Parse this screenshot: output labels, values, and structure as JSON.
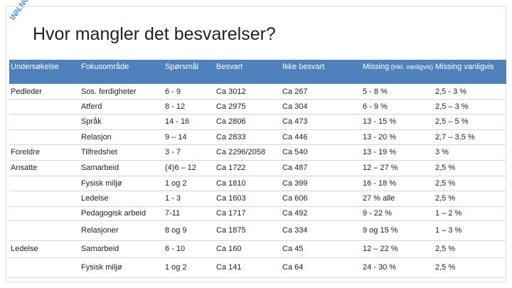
{
  "logo": "INN.NO",
  "header": {
    "title": "Hvor mangler det besvarelser?"
  },
  "table": {
    "columns": [
      "Undersøkelse",
      "Fokusområde",
      "Spørsmål",
      "Besvart",
      "Ikke besvart",
      {
        "main": "Missing",
        "note": "(inkl. vanligvis)"
      },
      "Missing vanligvis"
    ],
    "groups": [
      {
        "label": "Pedleder",
        "rows": [
          [
            "Sos. ferdigheter",
            "6 - 9",
            "Ca 3012",
            "Ca 267",
            "5 - 8 %",
            "2,5 - 3 %"
          ],
          [
            "Atferd",
            "8 - 12",
            "Ca 2975",
            "Ca 304",
            "6 - 9 %",
            "2,5 – 3 %"
          ],
          [
            "Språk",
            "14 - 16",
            "Ca 2806",
            "Ca 473",
            "13 - 15 %",
            "2,5 – 5 %"
          ],
          [
            "Relasjon",
            "9 – 14",
            "Ca 2833",
            "Ca 446",
            "13 - 20 %",
            "2,7 – 3,5 %"
          ]
        ]
      },
      {
        "label": "Foreldre",
        "rows": [
          [
            "Tilfredshet",
            "3 - 7",
            "Ca 2296/2058",
            "Ca 540",
            "13 - 19 %",
            "3 %"
          ]
        ]
      },
      {
        "label": "Ansatte",
        "rows": [
          [
            "Samarbeid",
            "(4)6 – 12",
            "Ca 1722",
            "Ca 487",
            "12 – 27 %",
            "2,5 %"
          ],
          [
            "Fysisk miljø",
            "1 og 2",
            "Ca 1810",
            "Ca 399",
            "16 - 18 %",
            "2,5 %"
          ],
          [
            "Ledelse",
            "1 - 3",
            "Ca 1603",
            "Ca 606",
            "27 % alle",
            "2,5 %"
          ],
          [
            "Pedagogisk arbeid",
            "7-11",
            "Ca 1717",
            "Ca 492",
            "9 - 22 %",
            "1 – 2 %"
          ],
          [
            "Relasjoner",
            "8 og 9",
            "Ca 1875",
            "Ca 334",
            "9 og 15 %",
            "1 – 3 %"
          ]
        ]
      },
      {
        "label": "Ledelse",
        "rows": [
          [
            "Samarbeid",
            "6 - 10",
            "Ca 160",
            "Ca 45",
            "12 – 22 %",
            "2,5 %"
          ],
          [
            "Fysisk miljø",
            "1 og 2",
            "Ca 141",
            "Ca 64",
            "24 - 30 %",
            "2,5 %"
          ]
        ]
      }
    ]
  }
}
